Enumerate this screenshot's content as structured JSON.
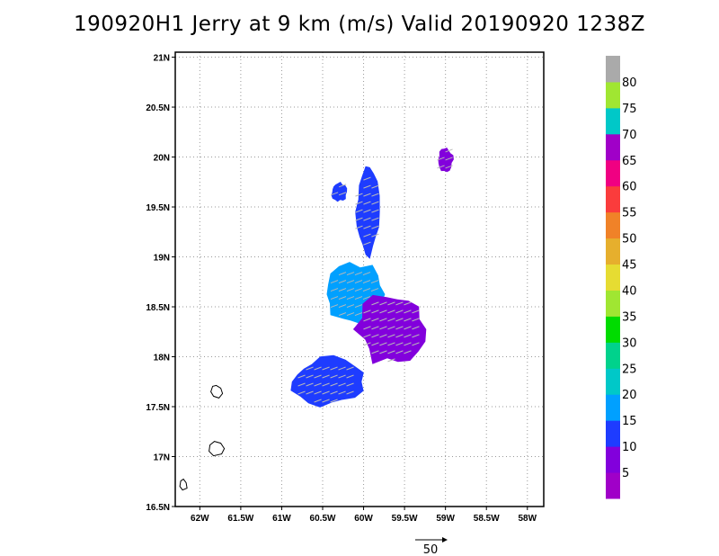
{
  "title": "190920H1 Jerry at 9 km (m/s) Valid 20190920 1238Z",
  "chart_data": {
    "type": "heatmap",
    "title": "190920H1 Jerry at 9 km (m/s) Valid 20190920 1238Z",
    "xlabel": "",
    "ylabel": "",
    "x_ticks": [
      "62W",
      "61.5W",
      "61W",
      "60.5W",
      "60W",
      "59.5W",
      "59W",
      "58.5W",
      "58W"
    ],
    "y_ticks": [
      "21N",
      "20.5N",
      "20N",
      "19.5N",
      "19N",
      "18.5N",
      "18N",
      "17.5N",
      "17N",
      "16.5N"
    ],
    "xlim": [
      -62.3,
      -57.8
    ],
    "ylim": [
      16.5,
      21.05
    ],
    "grid": true,
    "colorbar": {
      "levels": [
        5,
        10,
        15,
        20,
        25,
        30,
        35,
        40,
        45,
        50,
        55,
        60,
        65,
        70,
        75,
        80
      ],
      "labels": [
        "5",
        "10",
        "15",
        "20",
        "25",
        "30",
        "35",
        "40",
        "45",
        "50",
        "55",
        "60",
        "65",
        "70",
        "75",
        "80"
      ],
      "colors": [
        "#a000c8",
        "#8200dc",
        "#1e3cff",
        "#00a0ff",
        "#00c8c8",
        "#00d28c",
        "#00dc00",
        "#a0e632",
        "#e6dc32",
        "#e6af2d",
        "#f08228",
        "#fa3c3c",
        "#f00082",
        "#a000c8",
        "#00c8c8",
        "#a0e632",
        "#aaaaaa"
      ]
    },
    "reference_vector": {
      "label": "50",
      "value": 50
    },
    "wind_regions": [
      {
        "name": "core-cyan",
        "color": "#00a0ff",
        "lon": [
          -60.5,
          -59.7
        ],
        "lat": [
          18.3,
          18.95
        ]
      },
      {
        "name": "core-purple",
        "color": "#8200dc",
        "lon": [
          -60.1,
          -59.2
        ],
        "lat": [
          17.9,
          18.65
        ]
      },
      {
        "name": "southwest-blue",
        "color": "#1e3cff",
        "lon": [
          -60.9,
          -60.0
        ],
        "lat": [
          17.5,
          18.0
        ]
      },
      {
        "name": "northwest-blue",
        "color": "#1e3cff",
        "lon": [
          -60.4,
          -60.2
        ],
        "lat": [
          19.55,
          19.75
        ]
      },
      {
        "name": "north-band",
        "color": "#1e3cff",
        "lon": [
          -60.1,
          -59.8
        ],
        "lat": [
          19.0,
          19.9
        ]
      },
      {
        "name": "northeast-purple",
        "color": "#8200dc",
        "lon": [
          -59.1,
          -58.9
        ],
        "lat": [
          19.85,
          20.1
        ]
      }
    ],
    "coastlines": [
      {
        "name": "island-a",
        "lon": -61.8,
        "lat": 17.65
      },
      {
        "name": "island-b",
        "lon": -61.8,
        "lat": 17.08
      },
      {
        "name": "island-c",
        "lon": -62.2,
        "lat": 16.72
      }
    ]
  }
}
